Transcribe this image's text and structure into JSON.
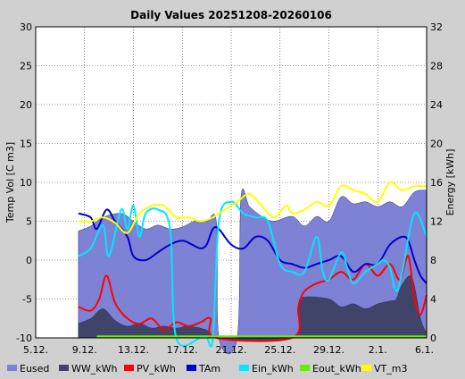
{
  "chart_data": {
    "type": "area",
    "title": "Daily Values 20251208-20260106",
    "ylabel": "Temp Vol [C m3]",
    "y2label": "Energy [kWh]",
    "x_range": [
      0,
      32
    ],
    "ylim": [
      -10,
      30
    ],
    "y2lim": [
      0,
      32
    ],
    "yticks": [
      -10,
      -5,
      0,
      5,
      10,
      15,
      20,
      25,
      30
    ],
    "y2ticks": [
      0,
      4,
      8,
      12,
      16,
      20,
      24,
      28,
      32
    ],
    "xtick_positions": [
      0,
      4,
      8,
      12,
      16,
      20,
      24,
      28,
      32
    ],
    "xtick_labels": [
      "5.12.",
      "9.12.",
      "13.12.",
      "17.12.",
      "21.12.",
      "25.12.",
      "29.12.",
      "2.1.",
      "6.1."
    ],
    "background": "#d0d0d0",
    "grid": true,
    "legend_position": "bottom",
    "series": [
      {
        "name": "Eused",
        "axis": "right",
        "style": "area",
        "color": "#7e82d4",
        "points": [
          [
            3.5,
            11
          ],
          [
            4.5,
            11.5
          ],
          [
            5.5,
            12.4
          ],
          [
            7,
            12.8
          ],
          [
            8,
            12
          ],
          [
            9,
            11.2
          ],
          [
            10,
            11.6
          ],
          [
            11,
            11.2
          ],
          [
            12,
            11.4
          ],
          [
            13,
            12
          ],
          [
            14,
            12
          ],
          [
            14.8,
            11.8
          ],
          [
            15,
            0
          ],
          [
            16.5,
            0
          ],
          [
            16.8,
            14.5
          ],
          [
            17.5,
            13.5
          ],
          [
            18.5,
            12.5
          ],
          [
            19.5,
            12
          ],
          [
            21,
            12.5
          ],
          [
            22,
            11.5
          ],
          [
            23,
            12.5
          ],
          [
            24,
            12
          ],
          [
            25,
            14.5
          ],
          [
            26,
            13.8
          ],
          [
            27,
            14
          ],
          [
            28,
            13.5
          ],
          [
            29,
            14
          ],
          [
            30,
            13.5
          ],
          [
            31,
            15
          ],
          [
            32,
            15.2
          ]
        ]
      },
      {
        "name": "WW_kWh",
        "axis": "right",
        "style": "area",
        "color": "#404468",
        "points": [
          [
            3.5,
            1.5
          ],
          [
            4.5,
            2
          ],
          [
            5.5,
            3
          ],
          [
            6.5,
            1.8
          ],
          [
            7.5,
            1.2
          ],
          [
            8.5,
            1.5
          ],
          [
            9.5,
            1
          ],
          [
            10.5,
            1.2
          ],
          [
            11.5,
            1
          ],
          [
            12.5,
            1.2
          ],
          [
            14,
            0.8
          ],
          [
            15,
            0
          ],
          [
            21,
            0
          ],
          [
            21.5,
            3.5
          ],
          [
            22,
            4.2
          ],
          [
            24,
            4
          ],
          [
            25,
            3.2
          ],
          [
            26,
            3.5
          ],
          [
            27,
            3
          ],
          [
            28,
            3.5
          ],
          [
            29,
            3.8
          ],
          [
            29.5,
            4
          ],
          [
            30,
            5.5
          ],
          [
            30.8,
            6.2
          ],
          [
            31.5,
            2
          ],
          [
            32,
            0.5
          ]
        ]
      },
      {
        "name": "PV_kWh",
        "axis": "left",
        "style": "line",
        "color": "#ff0000",
        "points": [
          [
            3.5,
            -6
          ],
          [
            4.5,
            -6.5
          ],
          [
            5.2,
            -5
          ],
          [
            5.8,
            -2
          ],
          [
            6.5,
            -5.5
          ],
          [
            7.5,
            -7.5
          ],
          [
            8.5,
            -8.2
          ],
          [
            9.5,
            -7.5
          ],
          [
            10.5,
            -9
          ],
          [
            11.5,
            -8
          ],
          [
            12.5,
            -8.5
          ],
          [
            13.5,
            -8
          ],
          [
            14.3,
            -7.5
          ],
          [
            14.8,
            -10
          ],
          [
            21,
            -10
          ],
          [
            21.5,
            -6
          ],
          [
            22,
            -4
          ],
          [
            23,
            -3
          ],
          [
            24,
            -2.5
          ],
          [
            25,
            -1.5
          ],
          [
            26,
            -2.5
          ],
          [
            27,
            -0.5
          ],
          [
            28,
            -2
          ],
          [
            29,
            -0.5
          ],
          [
            29.8,
            -2.5
          ],
          [
            30.5,
            0.5
          ],
          [
            31,
            -5
          ],
          [
            31.5,
            -7
          ],
          [
            32,
            -4.5
          ]
        ]
      },
      {
        "name": "TAm",
        "axis": "left",
        "style": "line",
        "color": "#0000cc",
        "points": [
          [
            3.5,
            6
          ],
          [
            4.5,
            5.5
          ],
          [
            5,
            4
          ],
          [
            5.8,
            6.5
          ],
          [
            6.5,
            5
          ],
          [
            7.5,
            3
          ],
          [
            8,
            0.5
          ],
          [
            9,
            0
          ],
          [
            10,
            1
          ],
          [
            11,
            2
          ],
          [
            12,
            2.5
          ],
          [
            12.8,
            2
          ],
          [
            13.5,
            1.5
          ],
          [
            14,
            2
          ],
          [
            14.5,
            4
          ],
          [
            15,
            4
          ],
          [
            16,
            2
          ],
          [
            17,
            1.5
          ],
          [
            18,
            3
          ],
          [
            19,
            2.5
          ],
          [
            20,
            0
          ],
          [
            21,
            -0.5
          ],
          [
            22,
            -1
          ],
          [
            23,
            -0.5
          ],
          [
            24,
            0
          ],
          [
            25,
            0.5
          ],
          [
            26,
            -1.5
          ],
          [
            27,
            -0.5
          ],
          [
            28,
            -0.5
          ],
          [
            29,
            2
          ],
          [
            30,
            3
          ],
          [
            30.5,
            2.5
          ],
          [
            31,
            0
          ],
          [
            31.5,
            -2
          ],
          [
            32,
            -3
          ]
        ]
      },
      {
        "name": "Ein_kWh",
        "axis": "left",
        "style": "line",
        "color": "#00e6ff",
        "points": [
          [
            3.5,
            0.5
          ],
          [
            4.5,
            1.5
          ],
          [
            5.5,
            4.5
          ],
          [
            6,
            0.5
          ],
          [
            7,
            6.5
          ],
          [
            7.5,
            4
          ],
          [
            8,
            7
          ],
          [
            8.5,
            3
          ],
          [
            9,
            6
          ],
          [
            10,
            6.5
          ],
          [
            11,
            4
          ],
          [
            11.5,
            -10
          ],
          [
            13.5,
            -10
          ],
          [
            14,
            -10
          ],
          [
            14.5,
            -10
          ],
          [
            15,
            5
          ],
          [
            16,
            7.5
          ],
          [
            17,
            6
          ],
          [
            18,
            5.5
          ],
          [
            19,
            5
          ],
          [
            20,
            -0.5
          ],
          [
            21,
            -1.5
          ],
          [
            22,
            -1.5
          ],
          [
            23,
            3
          ],
          [
            23.5,
            -1.5
          ],
          [
            24,
            -2.5
          ],
          [
            25,
            1
          ],
          [
            25.5,
            -1
          ],
          [
            26,
            -3
          ],
          [
            27,
            -1.5
          ],
          [
            28,
            -0.5
          ],
          [
            28.5,
            0
          ],
          [
            29,
            -1
          ],
          [
            29.5,
            -4
          ],
          [
            30,
            -1.5
          ],
          [
            31,
            6
          ],
          [
            32,
            3
          ]
        ]
      },
      {
        "name": "Eout_kWh",
        "axis": "left",
        "style": "line",
        "color": "#66ee00",
        "points": [
          [
            5,
            -9.8
          ],
          [
            10,
            -9.8
          ],
          [
            15,
            -9.8
          ],
          [
            20,
            -9.8
          ],
          [
            25,
            -9.8
          ],
          [
            30,
            -9.8
          ],
          [
            32,
            -9.8
          ]
        ]
      },
      {
        "name": "VT_m3",
        "axis": "left",
        "style": "line",
        "color": "#ffff00",
        "points": [
          [
            3.5,
            5
          ],
          [
            4.5,
            5
          ],
          [
            5.5,
            5.5
          ],
          [
            6.5,
            4.8
          ],
          [
            7.5,
            3.5
          ],
          [
            8.5,
            6
          ],
          [
            9.5,
            7
          ],
          [
            10.5,
            7
          ],
          [
            11.5,
            5.5
          ],
          [
            12.5,
            5.5
          ],
          [
            13.5,
            5
          ],
          [
            14.5,
            5.5
          ],
          [
            15.5,
            6.5
          ],
          [
            16.5,
            7.5
          ],
          [
            17.5,
            8.5
          ],
          [
            18.5,
            7
          ],
          [
            19.5,
            5.5
          ],
          [
            20.5,
            7
          ],
          [
            21,
            6
          ],
          [
            22,
            6.5
          ],
          [
            23,
            7.5
          ],
          [
            24,
            7
          ],
          [
            25,
            9.5
          ],
          [
            26,
            9
          ],
          [
            27,
            8.5
          ],
          [
            28,
            7.5
          ],
          [
            29,
            10
          ],
          [
            30,
            9
          ],
          [
            31,
            9.5
          ],
          [
            32,
            9.5
          ]
        ]
      }
    ]
  }
}
